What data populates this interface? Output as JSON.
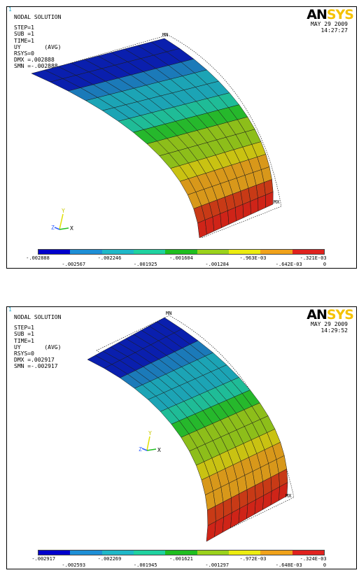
{
  "panels": [
    {
      "corner_index": "1",
      "title": "NODAL SOLUTION",
      "step": "STEP=1",
      "sub": "SUB =1",
      "time": "TIME=1",
      "result": "UY       (AVG)",
      "rsys": "RSYS=0",
      "dmx": "DMX =.002888",
      "smn": "SMN =-.002888",
      "logo_an": "AN",
      "logo_sys": "SYS",
      "date": "MAY 29 2009",
      "time_of_day": "14:27:27",
      "mn_label": "MN",
      "mx_label": "MX",
      "axis_y": "Y",
      "axis_z": "Z",
      "axis_x": "X",
      "legend_top": [
        "-.002888",
        "-.002246",
        "-.001604",
        "-.963E-03",
        "-.321E-03"
      ],
      "legend_bottom": [
        "-.002567",
        "-.001925",
        "-.001284",
        "-.642E-03",
        "0"
      ]
    },
    {
      "corner_index": "1",
      "title": "NODAL SOLUTION",
      "step": "STEP=1",
      "sub": "SUB =1",
      "time": "TIME=1",
      "result": "UY       (AVG)",
      "rsys": "RSYS=0",
      "dmx": "DMX =.002917",
      "smn": "SMN =-.002917",
      "logo_an": "AN",
      "logo_sys": "SYS",
      "date": "MAY 29 2009",
      "time_of_day": "14:29:52",
      "mn_label": "MN",
      "mx_label": "MX",
      "axis_y": "Y",
      "axis_z": "Z",
      "axis_x": "X",
      "legend_top": [
        "-.002917",
        "-.002269",
        "-.001621",
        "-.972E-03",
        "-.324E-03"
      ],
      "legend_bottom": [
        "-.002593",
        "-.001945",
        "-.001297",
        "-.648E-03",
        "0"
      ]
    }
  ],
  "legend_colors": [
    "#0000cc",
    "#1e8fd6",
    "#1fb8c8",
    "#20d2a0",
    "#1fbe1f",
    "#9bd21c",
    "#ecec10",
    "#f0a21b",
    "#e0221e"
  ],
  "band_colors": [
    "#0a1fae",
    "#1b7ab9",
    "#1ca4b5",
    "#1fbc97",
    "#26b82c",
    "#8dbe1a",
    "#c9c212",
    "#d8981a",
    "#c83a16",
    "#cf2418"
  ]
}
